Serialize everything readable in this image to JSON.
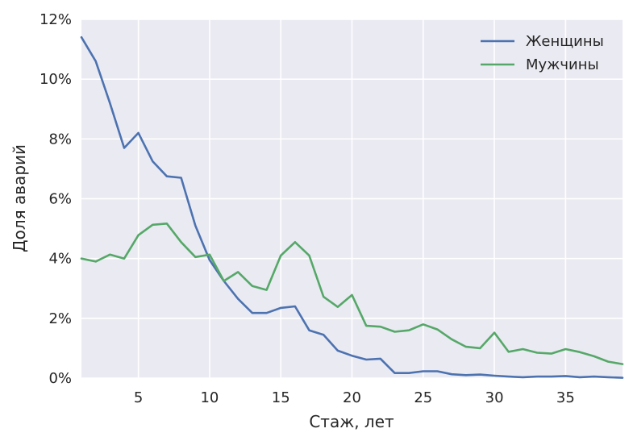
{
  "chart_data": {
    "type": "line",
    "xlabel": "Стаж, лет",
    "ylabel": "Доля аварий",
    "xlim": [
      1,
      39
    ],
    "ylim": [
      0,
      12
    ],
    "x_ticks": [
      5,
      10,
      15,
      20,
      25,
      30,
      35
    ],
    "y_ticks": [
      0,
      2,
      4,
      6,
      8,
      10,
      12
    ],
    "y_tick_labels": [
      "0%",
      "2%",
      "4%",
      "6%",
      "8%",
      "10%",
      "12%"
    ],
    "grid": true,
    "legend_position": "top-right",
    "background": "#eaeaf2",
    "x": [
      1,
      2,
      3,
      4,
      5,
      6,
      7,
      8,
      9,
      10,
      11,
      12,
      13,
      14,
      15,
      16,
      17,
      18,
      19,
      20,
      21,
      22,
      23,
      24,
      25,
      26,
      27,
      28,
      29,
      30,
      31,
      32,
      33,
      34,
      35,
      36,
      37,
      38,
      39
    ],
    "series": [
      {
        "name": "Женщины",
        "color": "#4c72b0",
        "values": [
          11.4,
          10.6,
          9.2,
          7.7,
          8.2,
          7.25,
          6.75,
          6.7,
          5.1,
          3.95,
          3.25,
          2.65,
          2.18,
          2.18,
          2.35,
          2.4,
          1.6,
          1.45,
          0.92,
          0.75,
          0.62,
          0.65,
          0.17,
          0.17,
          0.23,
          0.23,
          0.13,
          0.1,
          0.12,
          0.08,
          0.05,
          0.03,
          0.05,
          0.05,
          0.07,
          0.03,
          0.05,
          0.03,
          0.01
        ]
      },
      {
        "name": "Мужчины",
        "color": "#55a868",
        "values": [
          4.0,
          3.9,
          4.13,
          4.0,
          4.78,
          5.13,
          5.17,
          4.55,
          4.05,
          4.13,
          3.25,
          3.55,
          3.08,
          2.95,
          4.1,
          4.55,
          4.1,
          2.72,
          2.38,
          2.78,
          1.75,
          1.72,
          1.55,
          1.6,
          1.8,
          1.63,
          1.3,
          1.05,
          1.0,
          1.52,
          0.88,
          0.97,
          0.85,
          0.82,
          0.97,
          0.87,
          0.73,
          0.55,
          0.47
        ]
      }
    ]
  }
}
